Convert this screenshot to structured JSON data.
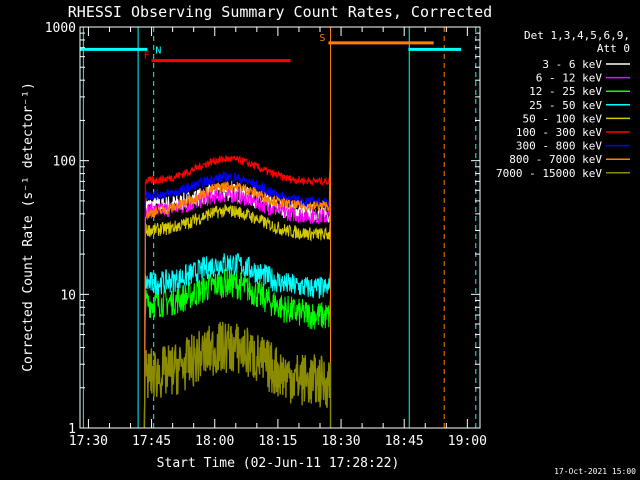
{
  "chart_data": {
    "type": "line",
    "title": "RHESSI Observing Summary Count Rates, Corrected",
    "xlabel": "Start Time (02-Jun-11 17:28:22)",
    "ylabel": "Corrected Count Rate (s⁻¹ detector⁻¹)",
    "y_scale": "log",
    "ylim": [
      1,
      1000
    ],
    "xlim_minutes": [
      -2,
      93
    ],
    "x_ticks": [
      {
        "m": 0,
        "label": "17:30"
      },
      {
        "m": 15,
        "label": "17:45"
      },
      {
        "m": 30,
        "label": "18:00"
      },
      {
        "m": 45,
        "label": "18:15"
      },
      {
        "m": 60,
        "label": "18:30"
      },
      {
        "m": 75,
        "label": "18:45"
      },
      {
        "m": 90,
        "label": "19:00"
      }
    ],
    "y_ticks": [
      {
        "v": 1,
        "label": "1"
      },
      {
        "v": 10,
        "label": "10"
      },
      {
        "v": 100,
        "label": "100"
      },
      {
        "v": 1000,
        "label": "1000"
      }
    ],
    "legend_header": [
      "Det 1,3,4,5,6,9,",
      "Att 0"
    ],
    "legend_position": "top-right",
    "timestamp": "17-Oct-2021 15:00",
    "data_window_minutes": [
      13.5,
      57.2
    ],
    "series": [
      {
        "name": "3 - 6 keV",
        "color": "#ffffff",
        "start": 46,
        "peak": 58,
        "end": 40,
        "noise": 0.07
      },
      {
        "name": "6 - 12 keV",
        "color": "#ff00ff",
        "start": 42,
        "peak": 55,
        "end": 38,
        "noise": 0.06
      },
      {
        "name": "12 - 25 keV",
        "color": "#00ff00",
        "start": 8.5,
        "peak": 12,
        "end": 6.8,
        "noise": 0.11
      },
      {
        "name": "25 - 50 keV",
        "color": "#00ffff",
        "start": 12,
        "peak": 17,
        "end": 11,
        "noise": 0.09
      },
      {
        "name": "50 - 100 keV",
        "color": "#d4c800",
        "start": 30,
        "peak": 42,
        "end": 28,
        "noise": 0.05
      },
      {
        "name": "100 - 300 keV",
        "color": "#ff0000",
        "start": 70,
        "peak": 103,
        "end": 70,
        "noise": 0.03
      },
      {
        "name": "300 - 800 keV",
        "color": "#0000ff",
        "start": 55,
        "peak": 75,
        "end": 48,
        "noise": 0.04
      },
      {
        "name": "800 - 7000 keV",
        "color": "#ff8000",
        "start": 40,
        "peak": 65,
        "end": 46,
        "noise": 0.04
      },
      {
        "name": "7000 - 15000 keV",
        "color": "#8b8b00",
        "start": 2.5,
        "peak": 4,
        "end": 2.2,
        "noise": 0.2
      }
    ],
    "flags": [
      {
        "label": "N",
        "color": "#00ffff",
        "segments": [
          [
            -2,
            14
          ],
          [
            76,
            88.5
          ]
        ],
        "y": 680
      },
      {
        "label": "F",
        "color": "#ff0000",
        "segments": [
          [
            15,
            48
          ]
        ],
        "y": 560
      },
      {
        "label": "S",
        "color": "#ff8000",
        "segments": [
          [
            57,
            82
          ]
        ],
        "y": 760
      }
    ],
    "vlines": [
      {
        "m": -1.2,
        "color": "#00ffff",
        "dashed": false
      },
      {
        "m": 11.8,
        "color": "#00ffff",
        "dashed": false
      },
      {
        "m": 15.5,
        "color": "#00ffff",
        "dashed": true
      },
      {
        "m": 57.5,
        "color": "#ff8000",
        "dashed": false
      },
      {
        "m": 76.2,
        "color": "#00ffff",
        "dashed": false
      },
      {
        "m": 84.5,
        "color": "#ff8000",
        "dashed": true
      },
      {
        "m": 92.0,
        "color": "#00ffff",
        "dashed": true
      }
    ]
  }
}
